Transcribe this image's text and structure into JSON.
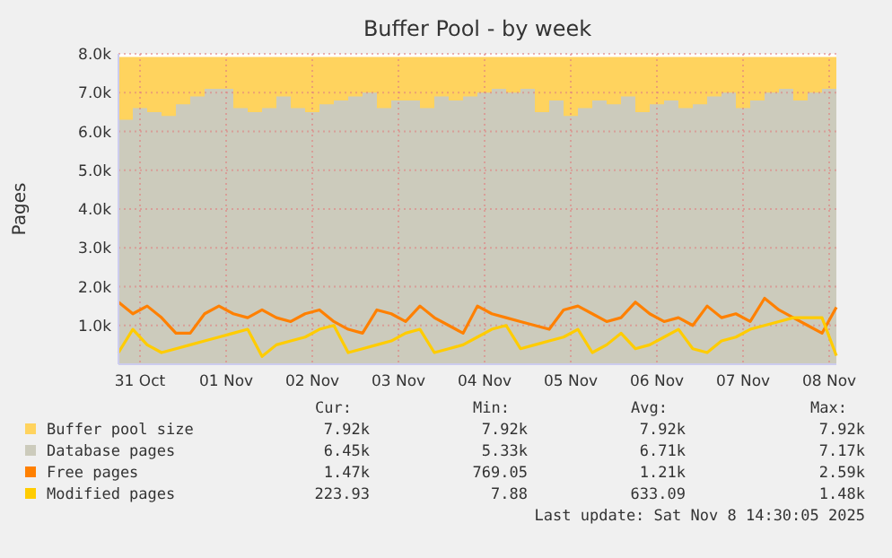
{
  "chart_data": {
    "type": "line",
    "title": "Buffer Pool - by week",
    "ylabel": "Pages",
    "x": [
      "2025-10-30T18:00",
      "2025-10-30T22:00",
      "2025-10-31T02:00",
      "2025-10-31T06:00",
      "2025-10-31T10:00",
      "2025-10-31T14:00",
      "2025-10-31T18:00",
      "2025-10-31T22:00",
      "2025-11-01T02:00",
      "2025-11-01T06:00",
      "2025-11-01T10:00",
      "2025-11-01T14:00",
      "2025-11-01T18:00",
      "2025-11-01T22:00",
      "2025-11-02T02:00",
      "2025-11-02T06:00",
      "2025-11-02T10:00",
      "2025-11-02T14:00",
      "2025-11-02T18:00",
      "2025-11-02T22:00",
      "2025-11-03T02:00",
      "2025-11-03T06:00",
      "2025-11-03T10:00",
      "2025-11-03T14:00",
      "2025-11-03T18:00",
      "2025-11-03T22:00",
      "2025-11-04T02:00",
      "2025-11-04T06:00",
      "2025-11-04T10:00",
      "2025-11-04T14:00",
      "2025-11-04T18:00",
      "2025-11-04T22:00",
      "2025-11-05T02:00",
      "2025-11-05T06:00",
      "2025-11-05T10:00",
      "2025-11-05T14:00",
      "2025-11-05T18:00",
      "2025-11-05T22:00",
      "2025-11-06T02:00",
      "2025-11-06T06:00",
      "2025-11-06T10:00",
      "2025-11-06T14:00",
      "2025-11-06T18:00",
      "2025-11-06T22:00",
      "2025-11-07T02:00",
      "2025-11-07T06:00",
      "2025-11-07T10:00",
      "2025-11-07T14:00",
      "2025-11-07T18:00",
      "2025-11-07T22:00",
      "2025-11-08T02:00"
    ],
    "xlim": [
      "2025-10-30T18:00",
      "2025-11-08T02:00"
    ],
    "xticks": [
      {
        "value": "2025-10-31",
        "label": "31 Oct"
      },
      {
        "value": "2025-11-01",
        "label": "01 Nov"
      },
      {
        "value": "2025-11-02",
        "label": "02 Nov"
      },
      {
        "value": "2025-11-03",
        "label": "03 Nov"
      },
      {
        "value": "2025-11-04",
        "label": "04 Nov"
      },
      {
        "value": "2025-11-05",
        "label": "05 Nov"
      },
      {
        "value": "2025-11-06",
        "label": "06 Nov"
      },
      {
        "value": "2025-11-07",
        "label": "07 Nov"
      },
      {
        "value": "2025-11-08",
        "label": "08 Nov"
      }
    ],
    "ylim": [
      0,
      8000
    ],
    "yticks": [
      {
        "value": 1000,
        "label": "1.0k"
      },
      {
        "value": 2000,
        "label": "2.0k"
      },
      {
        "value": 3000,
        "label": "3.0k"
      },
      {
        "value": 4000,
        "label": "4.0k"
      },
      {
        "value": 5000,
        "label": "5.0k"
      },
      {
        "value": 6000,
        "label": "6.0k"
      },
      {
        "value": 7000,
        "label": "7.0k"
      },
      {
        "value": 8000,
        "label": "8.0k"
      }
    ],
    "grid": true,
    "legend": "bottom",
    "series": [
      {
        "name": "Buffer pool size",
        "type": "area",
        "color": "#ffd35e",
        "values": [
          7920,
          7920,
          7920,
          7920,
          7920,
          7920,
          7920,
          7920,
          7920,
          7920,
          7920,
          7920,
          7920,
          7920,
          7920,
          7920,
          7920,
          7920,
          7920,
          7920,
          7920,
          7920,
          7920,
          7920,
          7920,
          7920,
          7920,
          7920,
          7920,
          7920,
          7920,
          7920,
          7920,
          7920,
          7920,
          7920,
          7920,
          7920,
          7920,
          7920,
          7920,
          7920,
          7920,
          7920,
          7920,
          7920,
          7920,
          7920,
          7920,
          7920,
          7920
        ]
      },
      {
        "name": "Database pages",
        "type": "area",
        "color": "#cccbbc",
        "values": [
          6300,
          6600,
          6500,
          6400,
          6700,
          6900,
          7100,
          7100,
          6600,
          6500,
          6600,
          6900,
          6600,
          6500,
          6700,
          6800,
          6900,
          7000,
          6600,
          6800,
          6800,
          6600,
          6900,
          6800,
          6900,
          7000,
          7100,
          7000,
          7100,
          6500,
          6800,
          6400,
          6600,
          6800,
          6700,
          6900,
          6500,
          6700,
          6800,
          6600,
          6700,
          6900,
          7000,
          6600,
          6800,
          7000,
          7100,
          6800,
          7000,
          7100,
          6450
        ]
      },
      {
        "name": "Free pages",
        "color": "#ff8000",
        "values": [
          1600,
          1300,
          1500,
          1200,
          800,
          800,
          1300,
          1500,
          1300,
          1200,
          1400,
          1200,
          1100,
          1300,
          1400,
          1100,
          900,
          800,
          1400,
          1300,
          1100,
          1500,
          1200,
          1000,
          800,
          1500,
          1300,
          1200,
          1100,
          1000,
          900,
          1400,
          1500,
          1300,
          1100,
          1200,
          1600,
          1300,
          1100,
          1200,
          1000,
          1500,
          1200,
          1300,
          1100,
          1700,
          1400,
          1200,
          1000,
          800,
          1470
        ]
      },
      {
        "name": "Modified pages",
        "color": "#ffcc00",
        "values": [
          300,
          900,
          500,
          300,
          400,
          500,
          600,
          700,
          800,
          900,
          200,
          500,
          600,
          700,
          900,
          1000,
          300,
          400,
          500,
          600,
          800,
          900,
          300,
          400,
          500,
          700,
          900,
          1000,
          400,
          500,
          600,
          700,
          900,
          300,
          500,
          800,
          400,
          500,
          700,
          900,
          400,
          300,
          600,
          700,
          900,
          1000,
          1100,
          1200,
          1200,
          1200,
          220
        ]
      }
    ],
    "annotations": [
      "Cur:",
      "Min:",
      "Avg:",
      "Max:",
      "7.92k",
      "7.92k",
      "7.92k",
      "7.92k",
      "6.45k",
      "5.33k",
      "6.71k",
      "7.17k",
      "1.47k",
      "769.05",
      "1.21k",
      "2.59k",
      "223.93",
      "7.88",
      "633.09",
      "1.48k",
      "Last update: Sat Nov  8 14:30:05 2025"
    ]
  }
}
